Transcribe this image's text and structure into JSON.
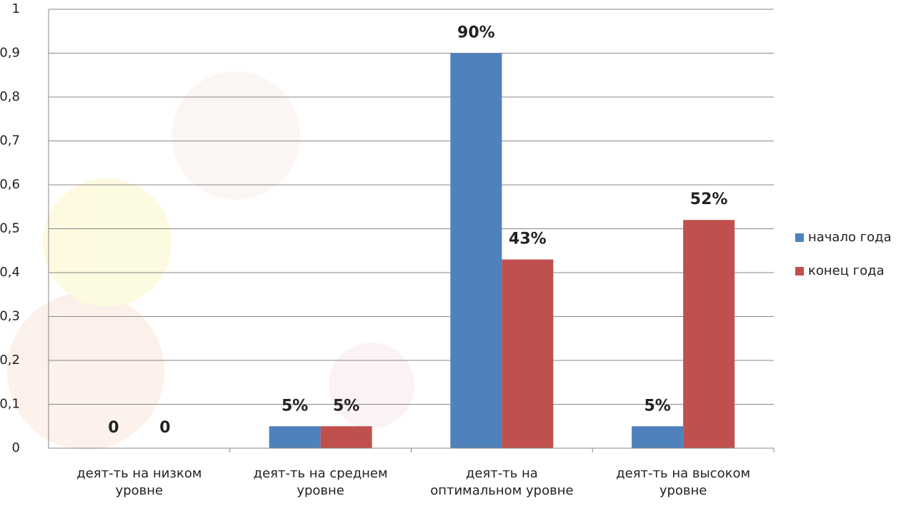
{
  "chart_data": {
    "type": "bar",
    "categories": [
      "деят-ть на низком\nуровне",
      "деят-ть на среднем\nуровне",
      "деят-ть на\nоптимальном уровне",
      "деят-ть на высоком\nуровне"
    ],
    "series": [
      {
        "name": "начало года",
        "color": "#4f81bd",
        "values": [
          0,
          0.05,
          0.9,
          0.05
        ],
        "value_labels": [
          "0",
          "5%",
          "90%",
          "5%"
        ]
      },
      {
        "name": "конец года",
        "color": "#c0504d",
        "values": [
          0,
          0.05,
          0.43,
          0.52
        ],
        "value_labels": [
          "0",
          "5%",
          "43%",
          "52%"
        ]
      }
    ],
    "ylim": [
      0,
      1
    ],
    "yticks": [
      0,
      {
        "value": 0.1,
        "label": "0,1"
      },
      {
        "value": 0.2,
        "label": "0,2"
      },
      {
        "value": 0.3,
        "label": "0,3"
      },
      {
        "value": 0.4,
        "label": "0,4"
      },
      {
        "value": 0.5,
        "label": "0,5"
      },
      {
        "value": 0.6,
        "label": "0,6"
      },
      {
        "value": 0.7,
        "label": "0,7"
      },
      {
        "value": 0.8,
        "label": "0,8"
      },
      {
        "value": 0.9,
        "label": "0,9"
      },
      1
    ],
    "grid": true,
    "legend": "right"
  }
}
